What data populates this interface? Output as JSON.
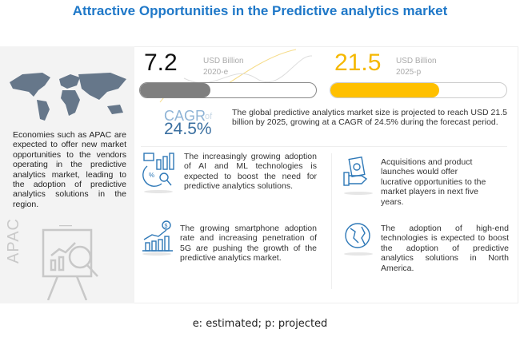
{
  "title": "Attractive Opportunities in the Predictive analytics market",
  "left": {
    "text": "Economies such as APAC are expected to offer new market opportunities to the vendors operating in the predictive analytics market, leading to the adoption of predictive analytics solutions in the region.",
    "region": "APAC"
  },
  "market": {
    "start": {
      "value": "7.2",
      "unit": "USD Billion",
      "year": "2020-e",
      "fill_percent": 40,
      "color": "#7f7f7f"
    },
    "end": {
      "value": "21.5",
      "unit": "USD Billion",
      "year": "2025-p",
      "fill_percent": 62,
      "color": "#ffc000"
    },
    "cagr_label": "CAGR",
    "cagr_of": "of",
    "cagr_value": "24.5%",
    "summary": "The global predictive analytics market size is projected to reach USD 21.5 billion by 2025, growing at a CAGR of 24.5% during the forecast period."
  },
  "insights": [
    {
      "icon": "analytics-percent-icon",
      "text": "The increasingly growing adoption of AI and ML technologies is expected to boost the need for predictive analytics solutions."
    },
    {
      "icon": "money-hand-icon",
      "text": "Acquisitions and product launches would offer lucrative opportunities to the market players in next five years."
    },
    {
      "icon": "growth-chart-dollar-icon",
      "text": "The growing smartphone adoption rate and increasing penetration of 5G are pushing the growth of the predictive analytics market."
    },
    {
      "icon": "globe-icon",
      "text": "The adoption of high-end technologies is expected to boost the adoption of predictive analytics solutions in North America."
    }
  ],
  "footnote": "e: estimated; p: projected"
}
